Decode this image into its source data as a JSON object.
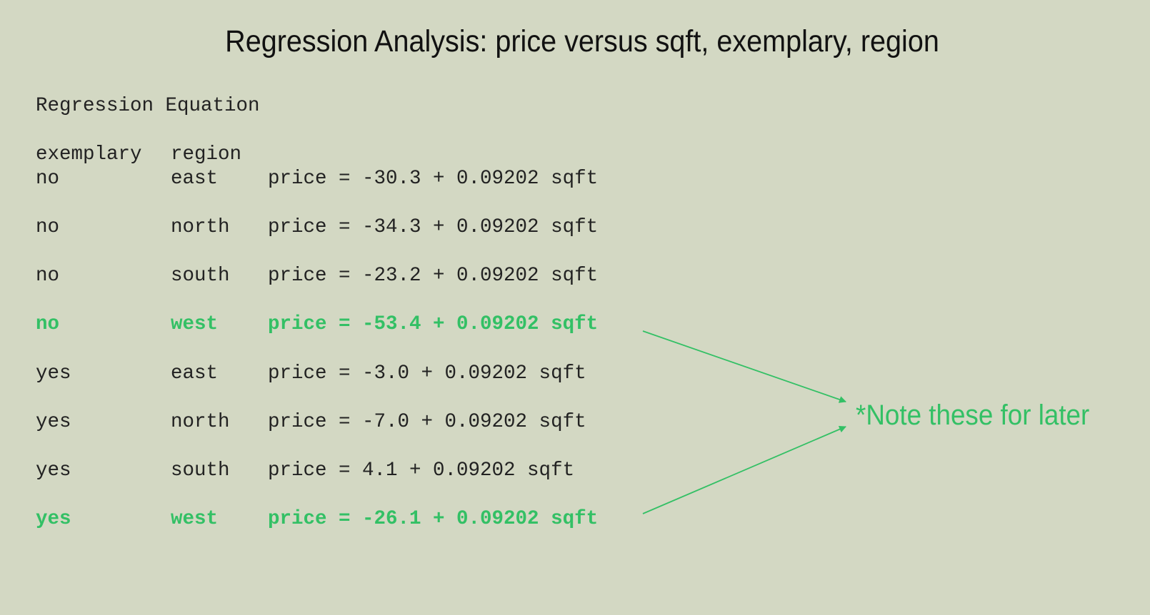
{
  "title": "Regression Analysis: price versus sqft, exemplary, region",
  "section_heading": "Regression Equation",
  "headers": {
    "exemplary": "exemplary",
    "region": "region"
  },
  "rows": [
    {
      "exemplary": "no",
      "region": "east",
      "equation": "price = -30.3 + 0.09202 sqft",
      "highlighted": false
    },
    {
      "exemplary": "no",
      "region": "north",
      "equation": "price = -34.3 + 0.09202 sqft",
      "highlighted": false
    },
    {
      "exemplary": "no",
      "region": "south",
      "equation": "price = -23.2 + 0.09202 sqft",
      "highlighted": false
    },
    {
      "exemplary": "no",
      "region": "west",
      "equation": "price = -53.4 + 0.09202 sqft",
      "highlighted": true
    },
    {
      "exemplary": "yes",
      "region": "east",
      "equation": "price = -3.0 + 0.09202 sqft",
      "highlighted": false
    },
    {
      "exemplary": "yes",
      "region": "north",
      "equation": "price = -7.0 + 0.09202 sqft",
      "highlighted": false
    },
    {
      "exemplary": "yes",
      "region": "south",
      "equation": "price = 4.1 + 0.09202 sqft",
      "highlighted": false
    },
    {
      "exemplary": "yes",
      "region": "west",
      "equation": "price = -26.1 + 0.09202 sqft",
      "highlighted": true
    }
  ],
  "annotation": {
    "text": "*Note these for later",
    "color": "#33c065"
  },
  "colors": {
    "background": "#d3d8c3",
    "text": "#222222",
    "highlight": "#33c065"
  }
}
